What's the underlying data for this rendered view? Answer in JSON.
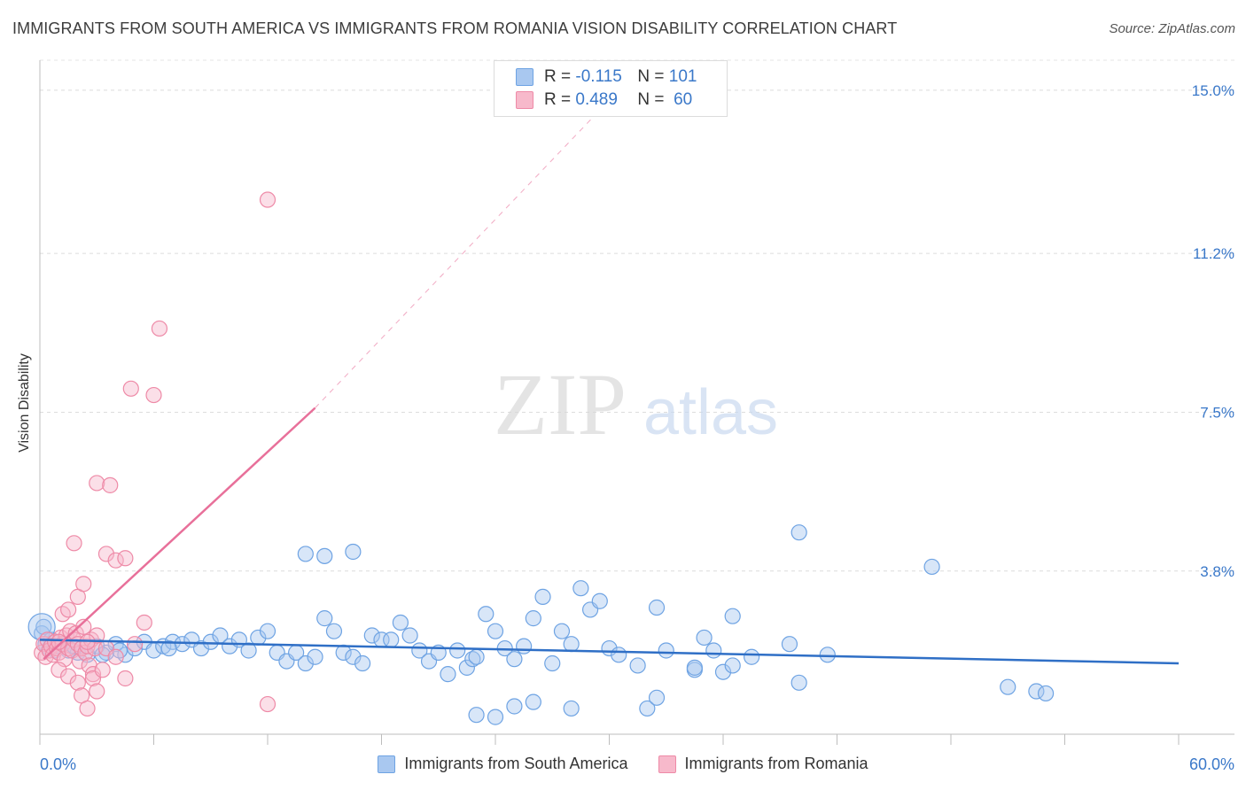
{
  "title": "IMMIGRANTS FROM SOUTH AMERICA VS IMMIGRANTS FROM ROMANIA VISION DISABILITY CORRELATION CHART",
  "source": "Source: ZipAtlas.com",
  "watermark": {
    "zip": "ZIP",
    "atlas": "atlas"
  },
  "stats": {
    "south_america": {
      "r_label": "R =",
      "r_value": "-0.115",
      "n_label": "N =",
      "n_value": "101",
      "color": "#a9c8f0"
    },
    "romania": {
      "r_label": "R =",
      "r_value": "0.489",
      "n_label": "N =",
      "n_value": "60",
      "color": "#f7b9cb"
    }
  },
  "legend": {
    "south_america": "Immigrants from South America",
    "romania": "Immigrants from Romania"
  },
  "chart_data": {
    "type": "scatter",
    "xlabel": "",
    "ylabel": "Vision Disability",
    "xlim": [
      0,
      60
    ],
    "ylim": [
      0,
      15.7
    ],
    "x_tick_labels": [
      "0.0%",
      "60.0%"
    ],
    "y_ticks": [
      {
        "value": 3.8,
        "label": "3.8%"
      },
      {
        "value": 7.5,
        "label": "7.5%"
      },
      {
        "value": 11.2,
        "label": "11.2%"
      },
      {
        "value": 15.0,
        "label": "15.0%"
      }
    ],
    "grid": "horizontal dashed",
    "legend_position": "bottom",
    "series": [
      {
        "name": "Immigrants from South America",
        "color": "#6ea3e3",
        "fill": "#a9c8f0",
        "trend_color": "#2f6fc6",
        "trend": [
          [
            0,
            2.2
          ],
          [
            60,
            1.65
          ]
        ],
        "points": [
          [
            0.1,
            2.35
          ],
          [
            0.3,
            2.1
          ],
          [
            0.5,
            2.0
          ],
          [
            0.8,
            1.95
          ],
          [
            1.0,
            2.05
          ],
          [
            1.2,
            2.1
          ],
          [
            1.5,
            1.95
          ],
          [
            2.0,
            1.9
          ],
          [
            2.5,
            1.85
          ],
          [
            3.0,
            2.05
          ],
          [
            3.5,
            1.9
          ],
          [
            4.0,
            2.1
          ],
          [
            4.5,
            1.85
          ],
          [
            5.0,
            2.0
          ],
          [
            5.5,
            2.15
          ],
          [
            6.0,
            1.95
          ],
          [
            6.5,
            2.05
          ],
          [
            7.0,
            2.15
          ],
          [
            7.5,
            2.1
          ],
          [
            8.0,
            2.2
          ],
          [
            8.5,
            2.0
          ],
          [
            9.0,
            2.15
          ],
          [
            9.5,
            2.3
          ],
          [
            10.0,
            2.05
          ],
          [
            10.5,
            2.2
          ],
          [
            11.0,
            1.95
          ],
          [
            11.5,
            2.25
          ],
          [
            12.0,
            2.4
          ],
          [
            12.5,
            1.9
          ],
          [
            13.0,
            1.7
          ],
          [
            13.5,
            1.9
          ],
          [
            14.0,
            1.65
          ],
          [
            14.5,
            1.8
          ],
          [
            15.0,
            2.7
          ],
          [
            15.5,
            2.4
          ],
          [
            16.0,
            1.9
          ],
          [
            16.5,
            1.8
          ],
          [
            17.0,
            1.65
          ],
          [
            17.5,
            2.3
          ],
          [
            18.0,
            2.2
          ],
          [
            18.5,
            2.2
          ],
          [
            19.0,
            2.6
          ],
          [
            19.5,
            2.3
          ],
          [
            20.0,
            1.95
          ],
          [
            20.5,
            1.7
          ],
          [
            21.0,
            1.9
          ],
          [
            21.5,
            1.4
          ],
          [
            22.0,
            1.95
          ],
          [
            22.5,
            1.55
          ],
          [
            22.8,
            1.75
          ],
          [
            23.0,
            1.8
          ],
          [
            23.5,
            2.8
          ],
          [
            24.0,
            2.4
          ],
          [
            24.5,
            2.0
          ],
          [
            25.0,
            1.75
          ],
          [
            25.5,
            2.05
          ],
          [
            26.0,
            2.7
          ],
          [
            26.5,
            3.2
          ],
          [
            27.0,
            1.65
          ],
          [
            27.5,
            2.4
          ],
          [
            28.0,
            2.1
          ],
          [
            28.5,
            3.4
          ],
          [
            29.0,
            2.9
          ],
          [
            29.5,
            3.1
          ],
          [
            30.0,
            2.0
          ],
          [
            30.5,
            1.85
          ],
          [
            31.5,
            1.6
          ],
          [
            32.5,
            2.95
          ],
          [
            33.0,
            1.95
          ],
          [
            34.5,
            1.5
          ],
          [
            35.0,
            2.25
          ],
          [
            35.5,
            1.95
          ],
          [
            36.5,
            2.75
          ],
          [
            37.5,
            1.8
          ],
          [
            39.5,
            2.1
          ],
          [
            41.5,
            1.85
          ],
          [
            14.0,
            4.2
          ],
          [
            15.0,
            4.15
          ],
          [
            16.5,
            4.25
          ],
          [
            23.0,
            0.45
          ],
          [
            24.0,
            0.4
          ],
          [
            25.0,
            0.65
          ],
          [
            26.0,
            0.75
          ],
          [
            28.0,
            0.6
          ],
          [
            32.0,
            0.6
          ],
          [
            32.5,
            0.85
          ],
          [
            34.5,
            1.55
          ],
          [
            36.0,
            1.45
          ],
          [
            36.5,
            1.6
          ],
          [
            40.0,
            1.2
          ],
          [
            40.0,
            4.7
          ],
          [
            47.0,
            3.9
          ],
          [
            51.0,
            1.1
          ],
          [
            52.5,
            1.0
          ],
          [
            53.0,
            0.95
          ],
          [
            0.2,
            2.5
          ],
          [
            0.6,
            2.2
          ],
          [
            1.8,
            2.05
          ],
          [
            3.3,
            1.85
          ],
          [
            4.2,
            1.95
          ],
          [
            6.8,
            2.0
          ]
        ]
      },
      {
        "name": "Immigrants from Romania",
        "color": "#ee8aa7",
        "fill": "#f7b9cb",
        "trend_color": "#e8709a",
        "trend": [
          [
            0.2,
            1.75
          ],
          [
            14.5,
            7.6
          ]
        ],
        "trend_ext": [
          [
            14.5,
            7.6
          ],
          [
            30.5,
            15.0
          ]
        ],
        "points": [
          [
            0.1,
            1.9
          ],
          [
            0.2,
            2.1
          ],
          [
            0.3,
            1.8
          ],
          [
            0.4,
            2.2
          ],
          [
            0.5,
            1.95
          ],
          [
            0.6,
            2.05
          ],
          [
            0.7,
            1.85
          ],
          [
            0.8,
            2.15
          ],
          [
            0.9,
            2.0
          ],
          [
            1.0,
            1.9
          ],
          [
            1.1,
            2.25
          ],
          [
            1.2,
            2.1
          ],
          [
            1.3,
            1.75
          ],
          [
            1.4,
            2.3
          ],
          [
            1.5,
            2.0
          ],
          [
            1.6,
            2.4
          ],
          [
            1.7,
            1.95
          ],
          [
            1.8,
            2.2
          ],
          [
            1.9,
            2.35
          ],
          [
            2.0,
            2.1
          ],
          [
            2.1,
            1.7
          ],
          [
            2.2,
            2.0
          ],
          [
            2.3,
            2.5
          ],
          [
            2.4,
            1.9
          ],
          [
            2.5,
            2.05
          ],
          [
            2.6,
            1.6
          ],
          [
            2.7,
            2.2
          ],
          [
            2.8,
            1.4
          ],
          [
            2.9,
            2.0
          ],
          [
            3.0,
            2.3
          ],
          [
            1.0,
            1.5
          ],
          [
            1.5,
            1.35
          ],
          [
            2.0,
            1.2
          ],
          [
            2.2,
            0.9
          ],
          [
            2.5,
            0.6
          ],
          [
            2.8,
            1.3
          ],
          [
            3.0,
            1.0
          ],
          [
            3.3,
            1.5
          ],
          [
            3.5,
            2.0
          ],
          [
            4.0,
            1.8
          ],
          [
            4.5,
            1.3
          ],
          [
            5.0,
            2.1
          ],
          [
            5.5,
            2.6
          ],
          [
            1.2,
            2.8
          ],
          [
            1.5,
            2.9
          ],
          [
            2.0,
            3.2
          ],
          [
            2.3,
            3.5
          ],
          [
            3.5,
            4.2
          ],
          [
            4.0,
            4.05
          ],
          [
            4.5,
            4.1
          ],
          [
            1.8,
            4.45
          ],
          [
            3.0,
            5.85
          ],
          [
            3.7,
            5.8
          ],
          [
            4.8,
            8.05
          ],
          [
            6.0,
            7.9
          ],
          [
            6.3,
            9.45
          ],
          [
            12.0,
            12.45
          ],
          [
            12.0,
            0.7
          ],
          [
            2.5,
            2.15
          ],
          [
            1.0,
            2.15
          ]
        ]
      }
    ]
  }
}
